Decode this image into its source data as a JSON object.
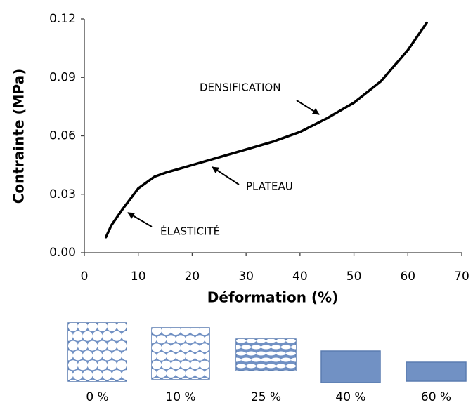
{
  "chart_data": {
    "type": "line",
    "xlabel": "Déformation (%)",
    "ylabel": "Contrainte (MPa)",
    "x": [
      4,
      5,
      7,
      10,
      13,
      15,
      20,
      25,
      30,
      35,
      40,
      45,
      50,
      55,
      60,
      63.5
    ],
    "values": [
      0.008,
      0.014,
      0.022,
      0.033,
      0.039,
      0.041,
      0.045,
      0.049,
      0.053,
      0.057,
      0.062,
      0.069,
      0.077,
      0.088,
      0.104,
      0.118
    ],
    "color": "#000000",
    "xlim": [
      0,
      70
    ],
    "xticks": [
      0,
      10,
      20,
      30,
      40,
      50,
      60,
      70
    ],
    "ylim": [
      0,
      0.12
    ],
    "yticks": [
      {
        "value": 0,
        "label": "0.00"
      },
      0.03,
      0.06,
      0.09,
      0.12
    ],
    "grid": false,
    "annotations": [
      "ÉLASTICITÉ",
      "PLATEAU",
      "DENSIFICATION"
    ]
  },
  "samples": [
    "0 %",
    "10 %",
    "25 %",
    "40 %",
    "60 %"
  ]
}
